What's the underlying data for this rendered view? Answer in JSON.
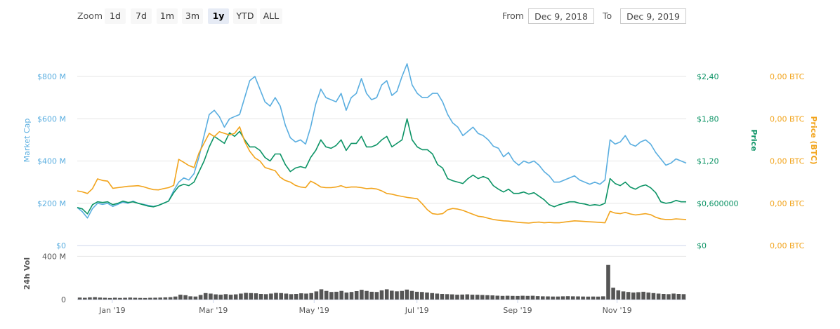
{
  "zoom": {
    "label": "Zoom",
    "buttons": [
      {
        "label": "1d"
      },
      {
        "label": "7d"
      },
      {
        "label": "1m"
      },
      {
        "label": "3m"
      },
      {
        "label": "1y",
        "active": true
      },
      {
        "label": "YTD"
      },
      {
        "label": "ALL"
      }
    ]
  },
  "range": {
    "from_label": "From",
    "from_value": "Dec 9, 2018",
    "to_label": "To",
    "to_value": "Dec 9, 2019"
  },
  "colors": {
    "market_cap": "#5aaee0",
    "price": "#0d9466",
    "price_btc": "#f2a41c",
    "volume": "#555555"
  },
  "chart_data": {
    "type": "line",
    "x_ticks": [
      "Jan '19",
      "Mar '19",
      "May '19",
      "Jul '19",
      "Sep '19",
      "Nov '19"
    ],
    "axes": {
      "market_cap": {
        "title": "Market Cap",
        "ticks": [
          "$0",
          "$200 M",
          "$400 M",
          "$600 M",
          "$800 M"
        ],
        "ylim": [
          0,
          800
        ]
      },
      "price": {
        "title": "Price",
        "ticks": [
          "$0",
          "$0,600000",
          "$1,20",
          "$1,80",
          "$2,40"
        ],
        "ylim": [
          0,
          2.4
        ]
      },
      "price_btc": {
        "title": "Price (BTC)",
        "ticks": [
          "0,00 BTC",
          "0,00 BTC",
          "0,00 BTC",
          "0,00 BTC",
          "0,00 BTC"
        ],
        "ylim": [
          0,
          0.00052
        ]
      },
      "volume": {
        "title": "24h Vol",
        "ticks": [
          "0",
          "400 M"
        ],
        "ylim": [
          0,
          500
        ]
      }
    },
    "series": [
      {
        "key": "market_cap",
        "values": [
          180,
          160,
          130,
          175,
          200,
          195,
          200,
          185,
          195,
          205,
          200,
          210,
          200,
          195,
          190,
          185,
          190,
          200,
          210,
          260,
          300,
          320,
          310,
          340,
          420,
          520,
          620,
          640,
          610,
          560,
          600,
          610,
          620,
          700,
          780,
          800,
          740,
          680,
          660,
          700,
          660,
          570,
          510,
          490,
          500,
          480,
          560,
          670,
          740,
          700,
          690,
          680,
          720,
          640,
          700,
          720,
          790,
          720,
          690,
          700,
          760,
          780,
          710,
          730,
          800,
          860,
          760,
          720,
          700,
          700,
          720,
          720,
          680,
          620,
          580,
          560,
          520,
          540,
          560,
          530,
          520,
          500,
          470,
          460,
          420,
          440,
          400,
          380,
          400,
          390,
          400,
          380,
          350,
          330,
          300,
          300,
          310,
          320,
          330,
          310,
          300,
          290,
          300,
          290,
          310,
          500,
          480,
          490,
          520,
          480,
          470,
          490,
          500,
          480,
          440,
          410,
          380,
          390,
          410,
          400,
          390
        ]
      },
      {
        "key": "price",
        "values": [
          0.54,
          0.52,
          0.45,
          0.58,
          0.62,
          0.61,
          0.62,
          0.58,
          0.6,
          0.63,
          0.61,
          0.62,
          0.6,
          0.58,
          0.56,
          0.55,
          0.57,
          0.6,
          0.63,
          0.75,
          0.84,
          0.87,
          0.85,
          0.9,
          1.05,
          1.2,
          1.4,
          1.55,
          1.5,
          1.45,
          1.6,
          1.55,
          1.62,
          1.5,
          1.4,
          1.4,
          1.35,
          1.25,
          1.2,
          1.3,
          1.3,
          1.15,
          1.05,
          1.1,
          1.12,
          1.1,
          1.25,
          1.35,
          1.5,
          1.4,
          1.38,
          1.42,
          1.5,
          1.35,
          1.45,
          1.45,
          1.55,
          1.4,
          1.4,
          1.43,
          1.5,
          1.55,
          1.4,
          1.45,
          1.5,
          1.8,
          1.5,
          1.4,
          1.36,
          1.36,
          1.3,
          1.15,
          1.1,
          0.95,
          0.92,
          0.9,
          0.88,
          0.95,
          1.0,
          0.95,
          0.98,
          0.95,
          0.85,
          0.8,
          0.76,
          0.8,
          0.74,
          0.74,
          0.76,
          0.73,
          0.75,
          0.7,
          0.65,
          0.58,
          0.55,
          0.58,
          0.6,
          0.62,
          0.62,
          0.6,
          0.59,
          0.57,
          0.58,
          0.57,
          0.6,
          0.95,
          0.88,
          0.85,
          0.9,
          0.83,
          0.8,
          0.84,
          0.86,
          0.82,
          0.75,
          0.62,
          0.6,
          0.61,
          0.64,
          0.62,
          0.62
        ]
      },
      {
        "key": "price_btc",
        "values": [
          0.000168,
          0.000165,
          0.00016,
          0.000175,
          0.000205,
          0.0002,
          0.000198,
          0.000176,
          0.000178,
          0.00018,
          0.000182,
          0.000183,
          0.000184,
          0.000181,
          0.000176,
          0.000172,
          0.000171,
          0.000175,
          0.000178,
          0.000185,
          0.000265,
          0.000256,
          0.000246,
          0.00024,
          0.000285,
          0.000315,
          0.000345,
          0.000335,
          0.00035,
          0.000345,
          0.00034,
          0.000345,
          0.000365,
          0.00032,
          0.00029,
          0.00027,
          0.00026,
          0.00024,
          0.000235,
          0.00023,
          0.00021,
          0.0002,
          0.000195,
          0.000185,
          0.00018,
          0.000178,
          0.000198,
          0.00019,
          0.00018,
          0.000178,
          0.000178,
          0.00018,
          0.000184,
          0.000178,
          0.00018,
          0.00018,
          0.000178,
          0.000175,
          0.000176,
          0.000174,
          0.000168,
          0.00016,
          0.000158,
          0.000154,
          0.000151,
          0.000148,
          0.000146,
          0.000144,
          0.000128,
          0.00011,
          9.8e-05,
          9.6e-05,
          9.8e-05,
          0.00011,
          0.000114,
          0.000112,
          0.000108,
          0.000102,
          9.6e-05,
          9e-05,
          8.8e-05,
          8.4e-05,
          8e-05,
          7.8e-05,
          7.6e-05,
          7.5e-05,
          7.3e-05,
          7.1e-05,
          7e-05,
          6.9e-05,
          7.1e-05,
          7.2e-05,
          7e-05,
          7.1e-05,
          7e-05,
          7e-05,
          7.2e-05,
          7.4e-05,
          7.6e-05,
          7.5e-05,
          7.4e-05,
          7.3e-05,
          7.2e-05,
          7.1e-05,
          7e-05,
          0.000105,
          0.0001,
          9.8e-05,
          0.000102,
          9.7e-05,
          9.4e-05,
          9.6e-05,
          9.8e-05,
          9.5e-05,
          8.7e-05,
          8.2e-05,
          8e-05,
          8e-05,
          8.2e-05,
          8.1e-05,
          8e-05
        ]
      },
      {
        "key": "volume",
        "values": [
          18,
          16,
          20,
          22,
          18,
          16,
          14,
          17,
          15,
          16,
          18,
          16,
          15,
          14,
          16,
          17,
          18,
          20,
          22,
          28,
          45,
          40,
          30,
          28,
          42,
          60,
          55,
          48,
          45,
          50,
          45,
          48,
          55,
          62,
          60,
          58,
          52,
          50,
          55,
          62,
          60,
          55,
          50,
          52,
          58,
          55,
          60,
          75,
          95,
          80,
          70,
          72,
          80,
          65,
          70,
          78,
          90,
          80,
          72,
          70,
          85,
          95,
          82,
          76,
          80,
          92,
          80,
          72,
          70,
          65,
          60,
          55,
          52,
          50,
          48,
          45,
          46,
          48,
          45,
          44,
          42,
          40,
          38,
          36,
          34,
          35,
          34,
          33,
          35,
          34,
          35,
          32,
          30,
          29,
          28,
          28,
          30,
          31,
          30,
          29,
          28,
          27,
          28,
          27,
          30,
          320,
          110,
          85,
          75,
          70,
          65,
          68,
          72,
          65,
          60,
          55,
          52,
          50,
          55,
          52,
          50
        ]
      }
    ]
  }
}
